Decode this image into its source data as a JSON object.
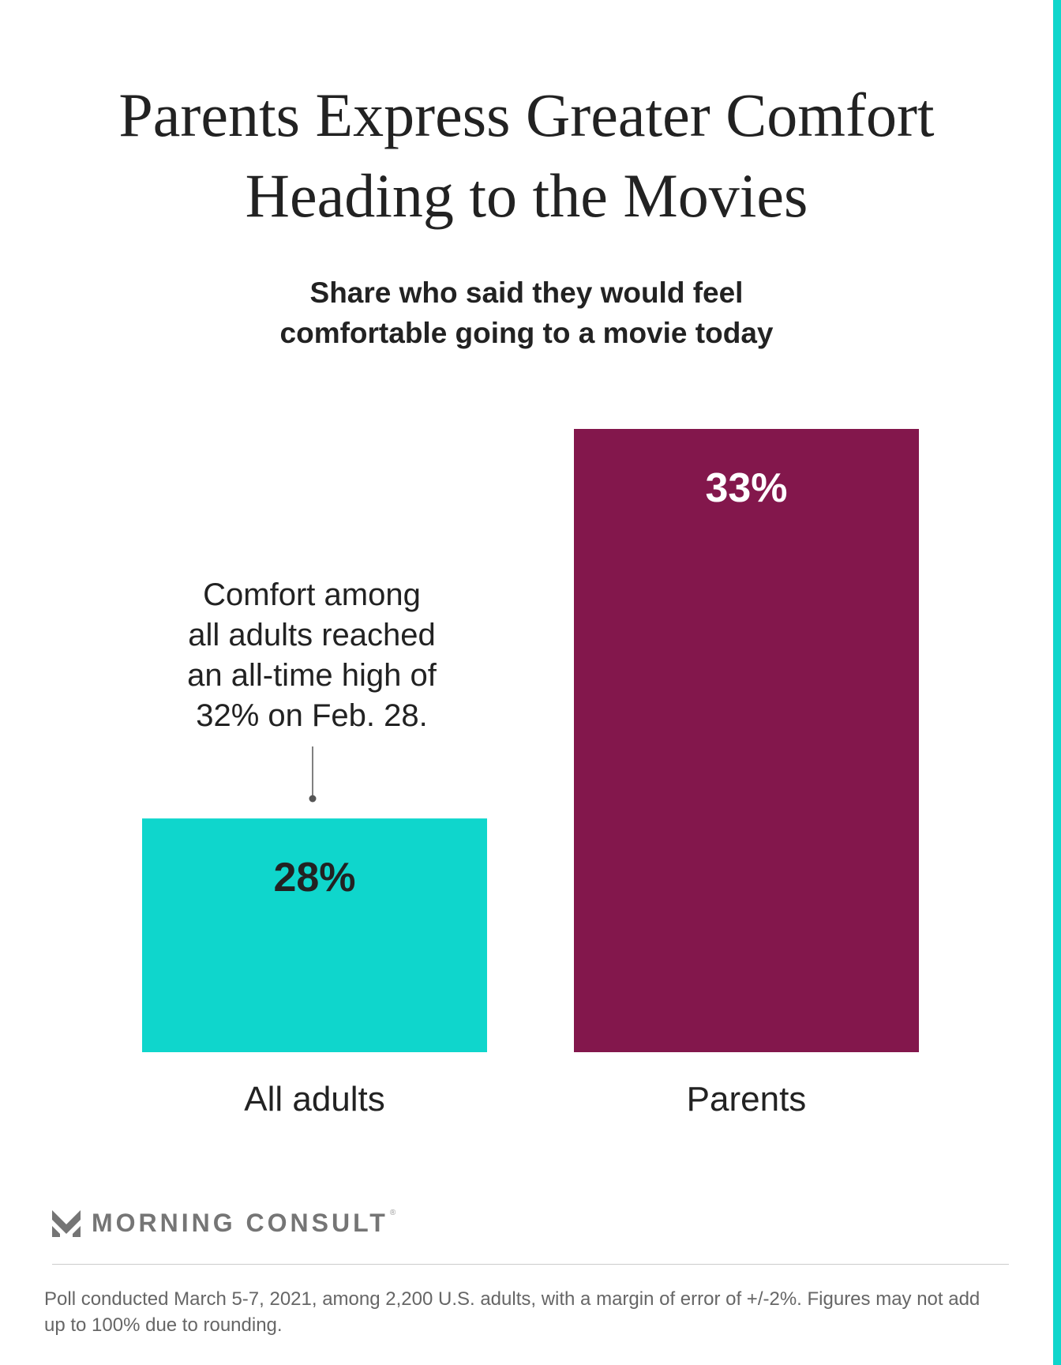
{
  "title_lines": [
    "Parents Express Greater Comfort",
    "Heading to the Movies"
  ],
  "subtitle_lines": [
    "Share who said they would feel",
    "comfortable going to a movie today"
  ],
  "annotation_lines": [
    "Comfort among",
    "all adults reached",
    "an all-time high of",
    "32% on Feb. 28."
  ],
  "brand": {
    "name": "MORNING CONSULT",
    "mark": "®",
    "icon": "morning-consult-chevron-icon"
  },
  "footnote": "Poll conducted March 5-7, 2021, among 2,200 U.S. adults, with a margin of error of +/-2%. Figures may not add up to 100% due to rounding.",
  "colors": {
    "all_adults": "#0fd6cc",
    "parents": "#83174c",
    "accent_stripe": "#0fd6cc"
  },
  "chart_data": {
    "type": "bar",
    "title": "Parents Express Greater Comfort Heading to the Movies",
    "subtitle": "Share who said they would feel comfortable going to a movie today",
    "categories": [
      "All adults",
      "Parents"
    ],
    "values": [
      28,
      33
    ],
    "value_labels": [
      "28%",
      "33%"
    ],
    "unit": "%",
    "ylim": [
      25,
      33
    ],
    "grid": false,
    "xlabel": "",
    "ylabel": ""
  }
}
